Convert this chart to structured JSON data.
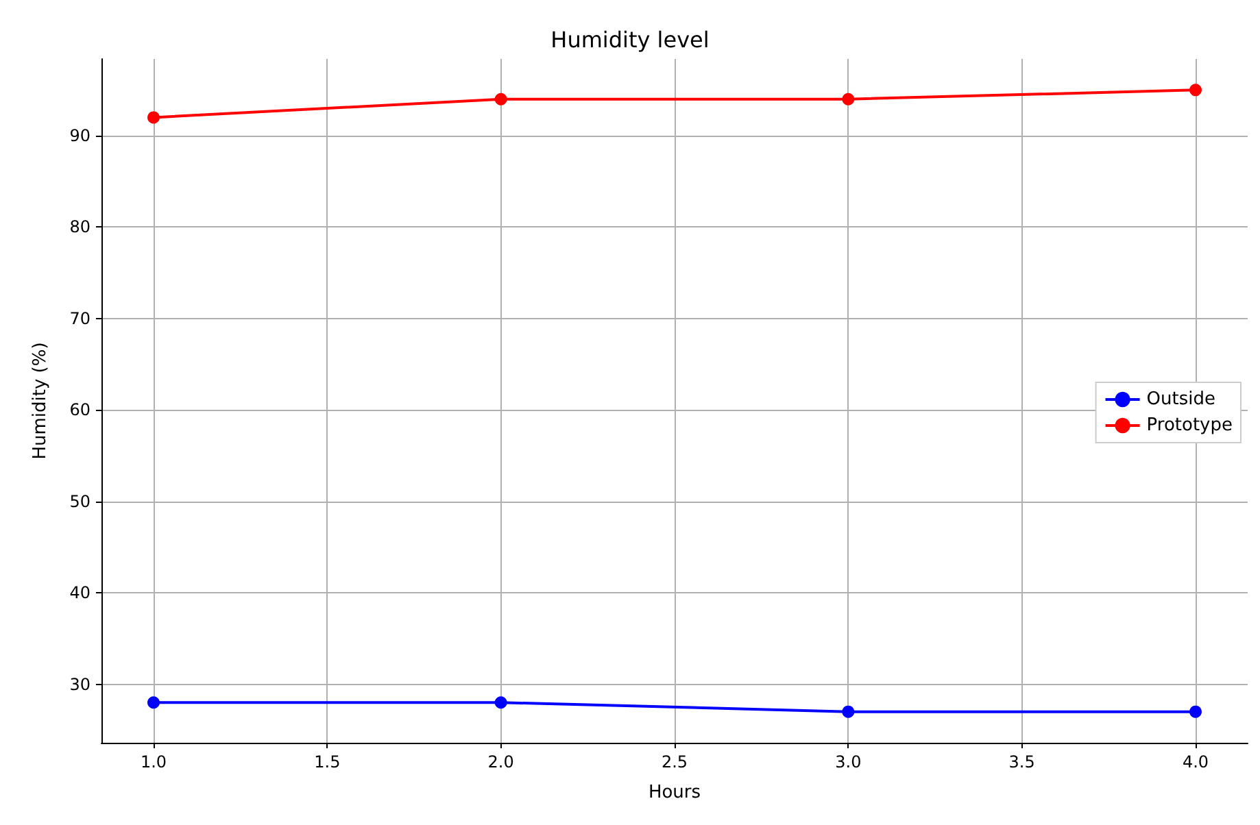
{
  "chart_data": {
    "type": "line",
    "title": "Humidity level",
    "xlabel": "Hours",
    "ylabel": "Humidity (%)",
    "x": [
      1,
      2,
      3,
      4
    ],
    "series": [
      {
        "name": "Outside",
        "color": "#0000ff",
        "values": [
          28,
          28,
          27,
          27
        ]
      },
      {
        "name": "Prototype",
        "color": "#ff0000",
        "values": [
          92,
          94,
          94,
          95
        ]
      }
    ],
    "xlim": [
      0.85,
      4.15
    ],
    "ylim": [
      23.6,
      98.4
    ],
    "xticks": [
      {
        "value": 1,
        "label": "1.0"
      },
      {
        "value": 1.5,
        "label": "1.5"
      },
      {
        "value": 2,
        "label": "2.0"
      },
      {
        "value": 2.5,
        "label": "2.5"
      },
      {
        "value": 3,
        "label": "3.0"
      },
      {
        "value": 3.5,
        "label": "3.5"
      },
      {
        "value": 4,
        "label": "4.0"
      }
    ],
    "yticks": [
      30,
      40,
      50,
      60,
      70,
      80,
      90
    ],
    "grid": true,
    "legend": "right",
    "marker": "circle",
    "line_style": "solid"
  }
}
